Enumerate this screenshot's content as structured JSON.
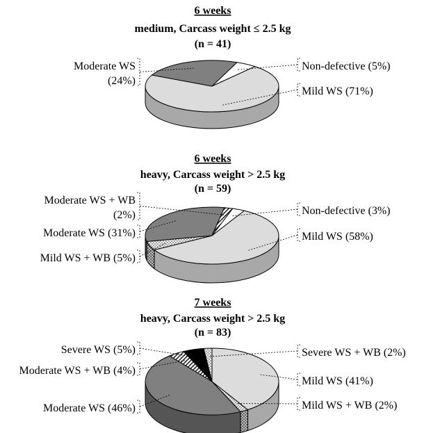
{
  "colors": {
    "light": "#dcdcdc",
    "medium": "#808080",
    "dark": "#000000",
    "white": "#ffffff",
    "edge": "#000000"
  },
  "chart_data": [
    {
      "type": "pie",
      "title": "6 weeks",
      "subtitle": "medium, Carcass weight ≤ 2.5 kg",
      "n_label": "(n = 41)",
      "slices": [
        {
          "name": "Non-defective",
          "value": 5,
          "label": "Non-defective (5%)",
          "fill": "white",
          "side": "right",
          "label_lines": [
            "Non-defective (5%)"
          ]
        },
        {
          "name": "Mild WS",
          "value": 71,
          "label": "Mild WS (71%)",
          "fill": "light",
          "side": "right",
          "label_lines": [
            "Mild WS (71%)"
          ]
        },
        {
          "name": "Moderate WS",
          "value": 24,
          "label": "Moderate WS (24%)",
          "fill": "medium",
          "side": "left",
          "label_lines": [
            "Moderate WS",
            "(24%)"
          ]
        }
      ]
    },
    {
      "type": "pie",
      "title": "6 weeks",
      "subtitle": "heavy, Carcass weight > 2.5 kg",
      "n_label": "(n = 59)",
      "slices": [
        {
          "name": "Non-defective",
          "value": 3,
          "label": "Non-defective (3%)",
          "fill": "white",
          "side": "right",
          "label_lines": [
            "Non-defective (3%)"
          ]
        },
        {
          "name": "Mild WS",
          "value": 58,
          "label": "Mild WS (58%)",
          "fill": "light",
          "side": "right",
          "label_lines": [
            "Mild WS (58%)"
          ]
        },
        {
          "name": "Mild WS + WB",
          "value": 5,
          "label": "Mild WS + WB (5%)",
          "fill": "dots",
          "side": "left",
          "label_lines": [
            "Mild WS + WB (5%)"
          ]
        },
        {
          "name": "Moderate WS",
          "value": 31,
          "label": "Moderate WS (31%)",
          "fill": "medium",
          "side": "left",
          "label_lines": [
            "Moderate WS (31%)"
          ]
        },
        {
          "name": "Moderate WS + WB",
          "value": 2,
          "label": "Moderate WS + WB (2%)",
          "fill": "hatch",
          "side": "left",
          "label_lines": [
            "Moderate WS + WB",
            "(2%)"
          ]
        }
      ]
    },
    {
      "type": "pie",
      "title": "7 weeks",
      "subtitle": "heavy, Carcass weight > 2.5 kg",
      "n_label": "(n = 83)",
      "slices": [
        {
          "name": "Mild WS",
          "value": 41,
          "label": "Mild WS (41%)",
          "fill": "light",
          "side": "right",
          "label_lines": [
            "Mild WS (41%)"
          ]
        },
        {
          "name": "Mild WS + WB",
          "value": 2,
          "label": "Mild WS + WB (2%)",
          "fill": "dots",
          "side": "right",
          "label_lines": [
            "Mild WS + WB (2%)"
          ]
        },
        {
          "name": "Moderate WS",
          "value": 46,
          "label": "Moderate WS (46%)",
          "fill": "medium",
          "side": "left",
          "label_lines": [
            "Moderate WS (46%)"
          ]
        },
        {
          "name": "Moderate WS + WB",
          "value": 4,
          "label": "Moderate WS + WB (4%)",
          "fill": "hatch",
          "side": "left",
          "label_lines": [
            "Moderate WS + WB (4%)"
          ]
        },
        {
          "name": "Severe WS",
          "value": 5,
          "label": "Severe WS (5%)",
          "fill": "dark",
          "side": "left",
          "label_lines": [
            "Severe WS (5%)"
          ]
        },
        {
          "name": "Severe WS + WB",
          "value": 2,
          "label": "Severe WS + WB (2%)",
          "fill": "dots",
          "side": "right",
          "label_lines": [
            "Severe WS + WB (2%)"
          ]
        }
      ]
    }
  ]
}
